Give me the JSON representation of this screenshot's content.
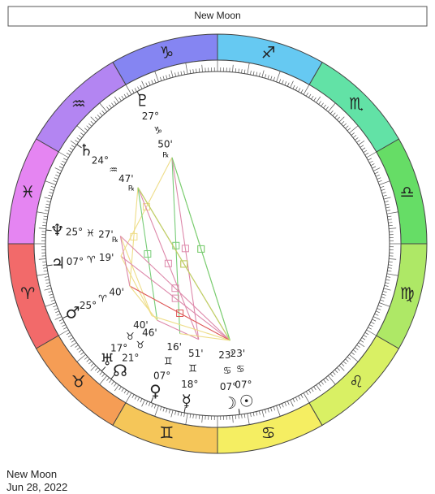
{
  "header": {
    "title": "New Moon"
  },
  "wheel": {
    "signs": [
      "♈",
      "♉",
      "♊",
      "♋",
      "♌",
      "♍",
      "♎",
      "♏",
      "♐",
      "♑",
      "♒",
      "♓"
    ],
    "sign_colors": [
      "#f26a6a",
      "#f59d55",
      "#f5c659",
      "#f5ee62",
      "#d9f064",
      "#aee866",
      "#66dd66",
      "#62e2a6",
      "#66c9f2",
      "#8585f2",
      "#b385f2",
      "#e585f2"
    ],
    "planets": [
      {
        "glyph": "♇",
        "degree": "27°",
        "sign": "♑",
        "minutes": "50'",
        "retrograde": "℞"
      },
      {
        "glyph": "♄",
        "degree": "24°",
        "sign": "♒",
        "minutes": "47'",
        "retrograde": "℞"
      },
      {
        "glyph": "♆",
        "degree": "25°",
        "sign": "♓",
        "minutes": "27'",
        "retrograde": "℞"
      },
      {
        "glyph": "♃",
        "degree": "07°",
        "sign": "♈",
        "minutes": "19'"
      },
      {
        "glyph": "♂",
        "degree": "25°",
        "sign": "♈",
        "minutes": "40'"
      },
      {
        "glyph": "♅",
        "degree": "17°",
        "sign": "♉",
        "minutes": "40'"
      },
      {
        "glyph": "☊",
        "degree": "21°",
        "sign": "♉",
        "minutes": "46'"
      },
      {
        "glyph": "♀",
        "degree": "07°",
        "sign": "♊",
        "minutes": "16'"
      },
      {
        "glyph": "☿",
        "degree": "18°",
        "sign": "♊",
        "minutes": "51'"
      },
      {
        "glyph": "☽",
        "degree": "07°",
        "sign": "♋",
        "minutes": "23'"
      },
      {
        "glyph": "☉",
        "degree": "07°",
        "sign": "♋",
        "minutes": "23'"
      }
    ]
  },
  "footer": {
    "title": "New Moon",
    "date": "Jun 28, 2022"
  }
}
